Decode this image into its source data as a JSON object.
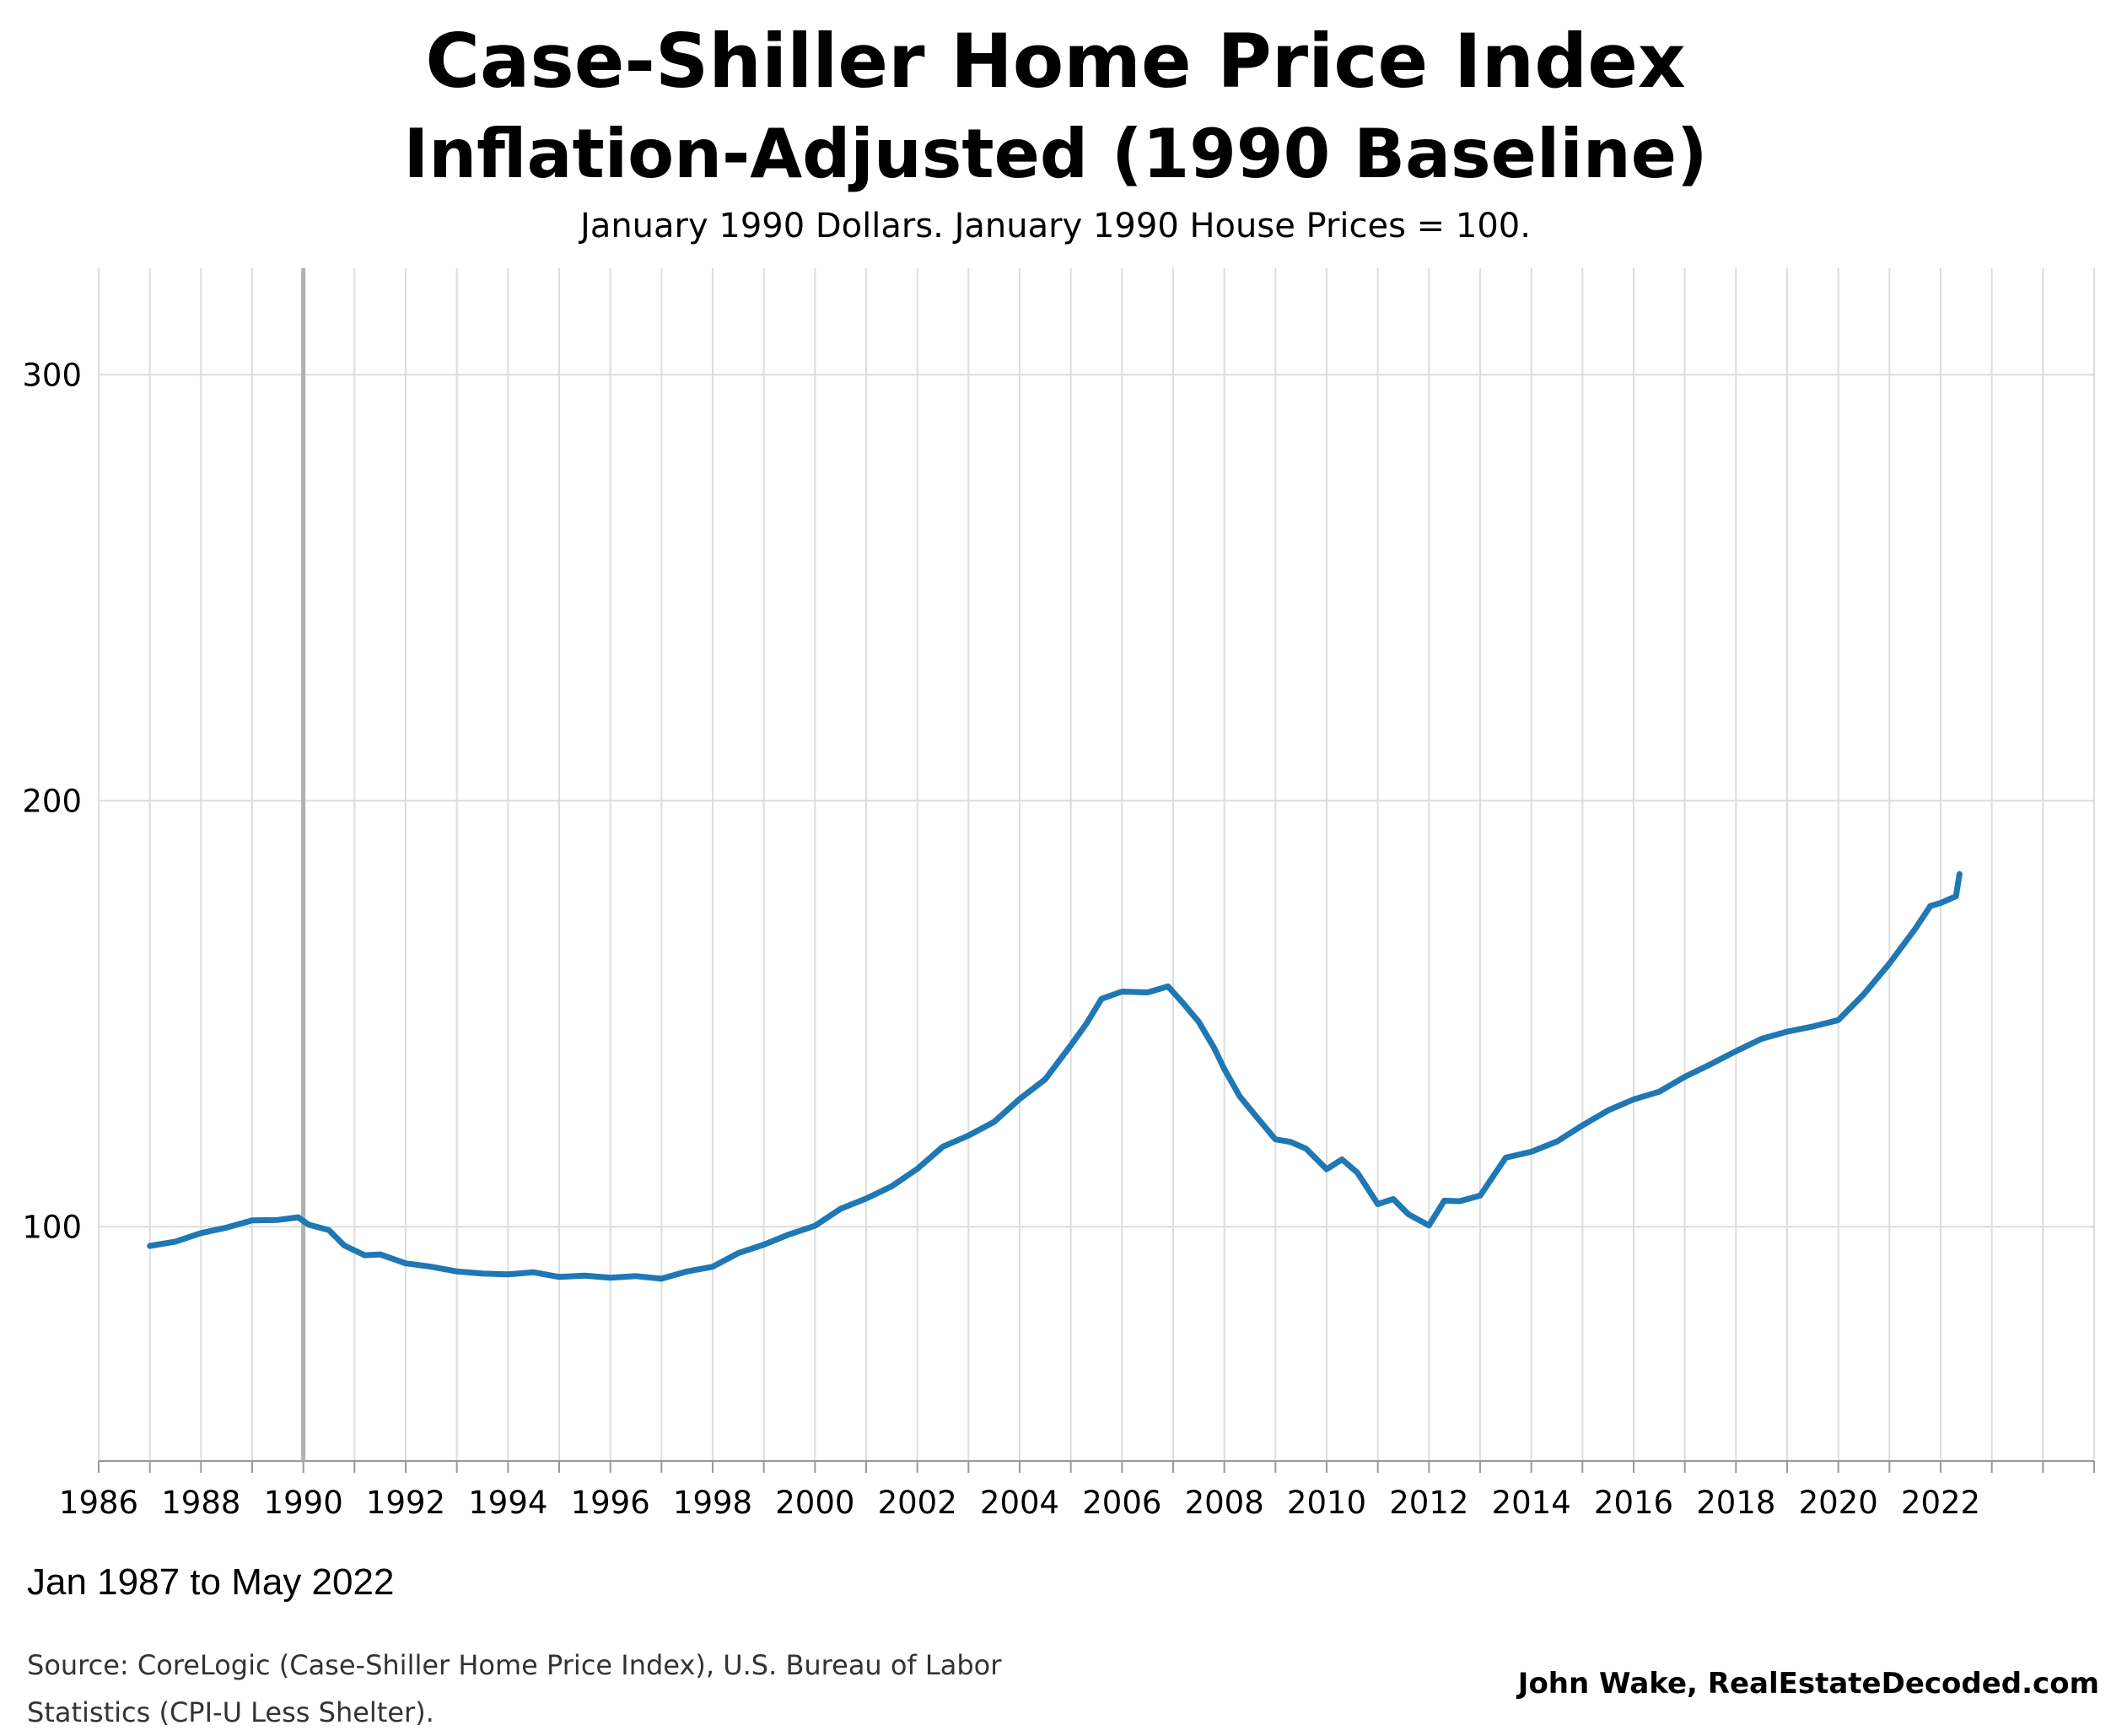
{
  "header": {
    "title": "Case-Shiller Home Price Index",
    "title_line2": "Inflation-Adjusted (1990 Baseline)",
    "subtitle": "January 1990 Dollars. January 1990 House Prices = 100."
  },
  "footer": {
    "date_range": "Jan 1987 to May 2022",
    "source": "Source: CoreLogic (Case-Shiller Home Price Index), U.S. Bureau of Labor Statistics (CPI-U Less Shelter).",
    "credit": "John Wake, RealEstateDecoded.com"
  },
  "colors": {
    "line": "#1f77b4",
    "grid": "#dddddd",
    "baseline_marker": "#b0b0b0",
    "axis": "#999999"
  },
  "chart_data": {
    "type": "line",
    "title": "Case-Shiller Home Price Index",
    "subtitle": "Inflation-Adjusted (1990 Baseline)",
    "xlabel": "",
    "ylabel": "",
    "xlim": [
      1986,
      2025
    ],
    "ylim": [
      45,
      325
    ],
    "x_ticks": [
      "1986",
      "1988",
      "1990",
      "1992",
      "1994",
      "1996",
      "1998",
      "2000",
      "2002",
      "2004",
      "2006",
      "2008",
      "2010",
      "2012",
      "2014",
      "2016",
      "2018",
      "2020",
      "2022"
    ],
    "y_ticks": [
      "100",
      "200",
      "300"
    ],
    "vertical_marker": 1990,
    "grid": true,
    "legend": "none",
    "series": [
      {
        "x": [
          1987.0,
          1987.5,
          1988.0,
          1988.5,
          1989.0,
          1989.5,
          1989.9,
          1990.1,
          1990.5,
          1990.8,
          1991.2,
          1991.5,
          1992.0,
          1992.5,
          1993.0,
          1993.5,
          1994.0,
          1994.5,
          1995.0,
          1995.5,
          1996.0,
          1996.5,
          1997.0,
          1997.5,
          1998.0,
          1998.5,
          1999.0,
          1999.5,
          2000.0,
          2000.5,
          2001.0,
          2001.5,
          2002.0,
          2002.5,
          2003.0,
          2003.5,
          2004.0,
          2004.5,
          2005.0,
          2005.3,
          2005.6,
          2006.0,
          2006.5,
          2006.9,
          2007.2,
          2007.5,
          2007.8,
          2008.0,
          2008.3,
          2008.6,
          2009.0,
          2009.3,
          2009.6,
          2010.0,
          2010.3,
          2010.6,
          2011.0,
          2011.3,
          2011.6,
          2012.0,
          2012.3,
          2012.6,
          2013.0,
          2013.5,
          2014.0,
          2014.5,
          2015.0,
          2015.5,
          2016.0,
          2016.5,
          2017.0,
          2017.5,
          2018.0,
          2018.5,
          2019.0,
          2019.5,
          2020.0,
          2020.5,
          2021.0,
          2021.5,
          2021.8,
          2022.0,
          2022.3,
          2022.37
        ],
        "values": [
          95.5,
          96.5,
          98.5,
          99.8,
          101.5,
          101.6,
          102.2,
          100.5,
          99.2,
          95.6,
          93.3,
          93.5,
          91.4,
          90.6,
          89.5,
          89.0,
          88.8,
          89.3,
          88.2,
          88.5,
          88.0,
          88.4,
          87.8,
          89.5,
          90.6,
          93.8,
          95.8,
          98.2,
          100.2,
          104.2,
          106.6,
          109.5,
          113.6,
          118.8,
          121.4,
          124.6,
          130.0,
          134.6,
          142.6,
          147.6,
          153.5,
          155.2,
          155.0,
          156.4,
          152.4,
          148.1,
          142.0,
          137.0,
          130.6,
          126.2,
          120.5,
          119.9,
          118.3,
          113.5,
          115.8,
          112.7,
          105.3,
          106.5,
          102.9,
          100.3,
          106.1,
          106.0,
          107.3,
          116.2,
          117.6,
          120.0,
          123.8,
          127.3,
          129.9,
          131.7,
          135.2,
          138.1,
          141.2,
          144.1,
          145.8,
          147.0,
          148.5,
          154.6,
          161.8,
          169.9,
          175.3,
          176.0,
          177.6,
          182.8
        ]
      }
    ]
  }
}
